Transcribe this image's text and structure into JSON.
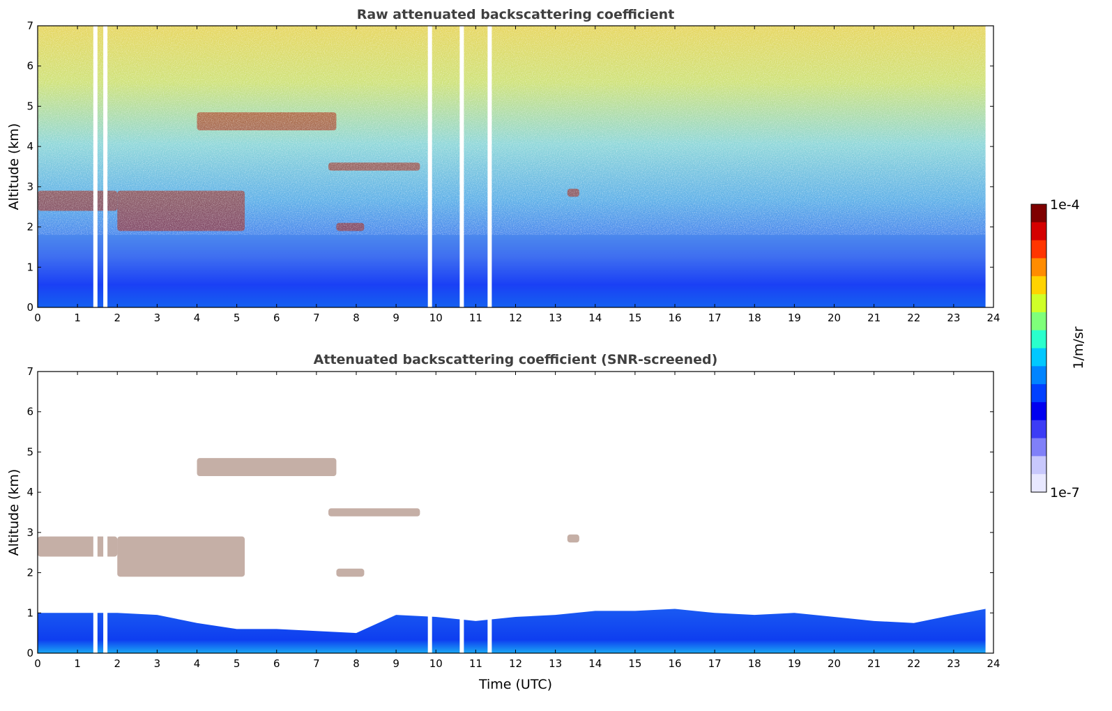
{
  "chart_data": [
    {
      "type": "heatmap",
      "title": "Raw attenuated backscattering coefficient",
      "xlabel": "",
      "ylabel": "Altitude (km)",
      "xlim": [
        0,
        24
      ],
      "ylim": [
        0,
        7
      ],
      "xticks": [
        "0",
        "1",
        "2",
        "3",
        "4",
        "5",
        "6",
        "7",
        "8",
        "9",
        "10",
        "11",
        "12",
        "13",
        "14",
        "15",
        "16",
        "17",
        "18",
        "19",
        "20",
        "21",
        "22",
        "23",
        "24"
      ],
      "yticks": [
        "0",
        "1",
        "2",
        "3",
        "4",
        "5",
        "6",
        "7"
      ],
      "layers": [
        {
          "name": "cloud",
          "t0": 4.0,
          "t1": 7.5,
          "z0": 4.4,
          "z1": 4.85
        },
        {
          "name": "cloud",
          "t0": 7.3,
          "t1": 9.6,
          "z0": 3.4,
          "z1": 3.6
        },
        {
          "name": "cloud",
          "t0": 0.0,
          "t1": 2.0,
          "z0": 2.4,
          "z1": 2.9
        },
        {
          "name": "cloud",
          "t0": 2.0,
          "t1": 5.2,
          "z0": 1.9,
          "z1": 2.9
        },
        {
          "name": "cloud",
          "t0": 7.5,
          "t1": 8.2,
          "z0": 1.9,
          "z1": 2.1
        },
        {
          "name": "cloud",
          "t0": 13.3,
          "t1": 13.6,
          "z0": 2.75,
          "z1": 2.95
        }
      ],
      "data_gaps_hours": [
        1.45,
        1.7,
        9.85,
        10.65,
        11.35
      ]
    },
    {
      "type": "heatmap",
      "title": "Attenuated backscattering coefficient (SNR-screened)",
      "xlabel": "Time (UTC)",
      "ylabel": "Altitude (km)",
      "xlim": [
        0,
        24
      ],
      "ylim": [
        0,
        7
      ],
      "xticks": [
        "0",
        "1",
        "2",
        "3",
        "4",
        "5",
        "6",
        "7",
        "8",
        "9",
        "10",
        "11",
        "12",
        "13",
        "14",
        "15",
        "16",
        "17",
        "18",
        "19",
        "20",
        "21",
        "22",
        "23",
        "24"
      ],
      "yticks": [
        "0",
        "1",
        "2",
        "3",
        "4",
        "5",
        "6",
        "7"
      ],
      "boundary_layer_top_km": [
        [
          0,
          1.0
        ],
        [
          1,
          1.0
        ],
        [
          2,
          1.0
        ],
        [
          3,
          0.95
        ],
        [
          4,
          0.75
        ],
        [
          5,
          0.6
        ],
        [
          6,
          0.6
        ],
        [
          7,
          0.55
        ],
        [
          8,
          0.5
        ],
        [
          9,
          0.95
        ],
        [
          10,
          0.9
        ],
        [
          11,
          0.8
        ],
        [
          12,
          0.9
        ],
        [
          13,
          0.95
        ],
        [
          14,
          1.05
        ],
        [
          15,
          1.05
        ],
        [
          16,
          1.1
        ],
        [
          17,
          1.0
        ],
        [
          18,
          0.95
        ],
        [
          19,
          1.0
        ],
        [
          20,
          0.9
        ],
        [
          21,
          0.8
        ],
        [
          22,
          0.75
        ],
        [
          23,
          0.95
        ],
        [
          23.8,
          1.1
        ]
      ]
    }
  ],
  "colorbar": {
    "max_label": "1e-4",
    "min_label": "1e-7",
    "unit_label": "1/m/sr",
    "colors": [
      "#7f0000",
      "#d40000",
      "#ff3500",
      "#ff8c00",
      "#ffd300",
      "#cfff28",
      "#7fff7a",
      "#2affcc",
      "#00c8ff",
      "#0084ff",
      "#0040ff",
      "#0000f0",
      "#3c3cf5",
      "#8080f8",
      "#c8c8fc",
      "#e8e8ff"
    ]
  }
}
